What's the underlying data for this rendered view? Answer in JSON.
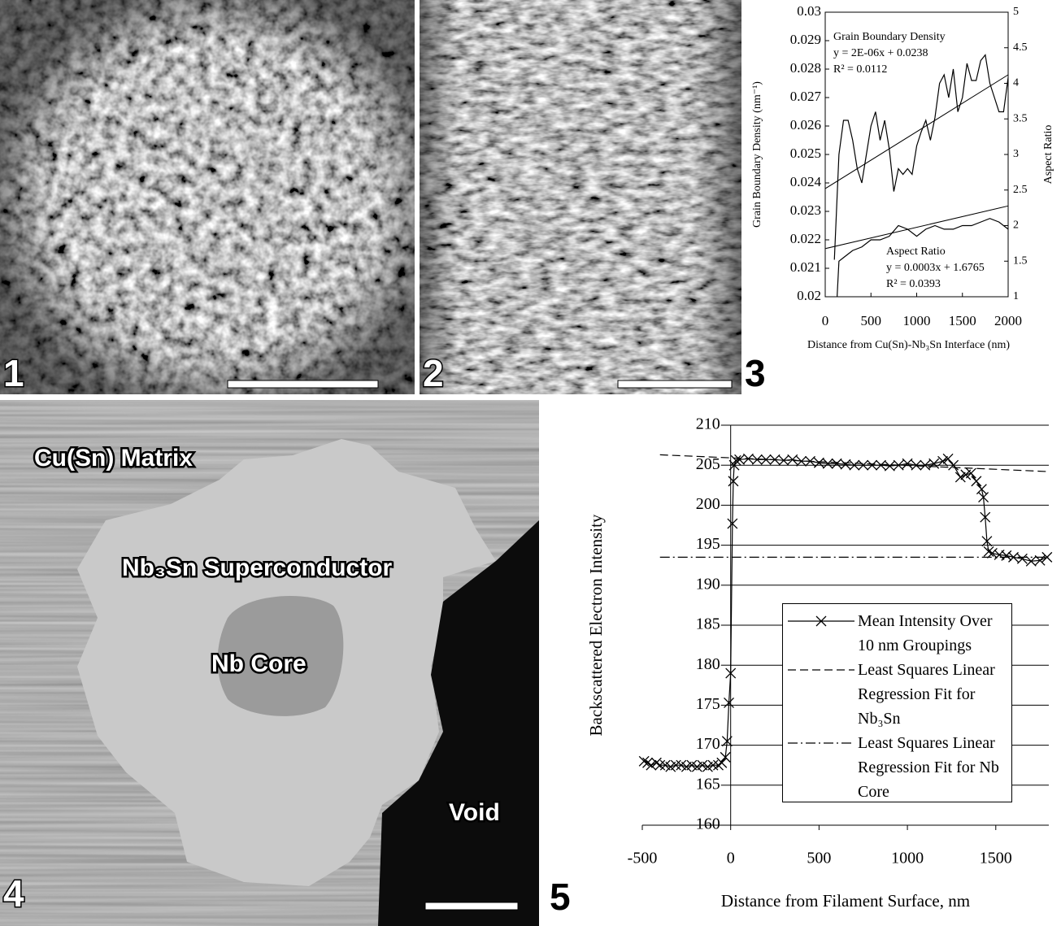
{
  "figure": {
    "panel_labels": [
      "1",
      "2",
      "3",
      "4",
      "5"
    ],
    "micrograph_labels": [
      "Cu(Sn) Matrix",
      "Nb₃Sn Superconductor",
      "Nb Core",
      "Void"
    ]
  },
  "chart_data": [
    {
      "type": "line",
      "x_label": "Distance from Cu(Sn)-Nb₃Sn Interface (nm)",
      "y_label": "Grain Boundary Density (nm⁻¹)",
      "y2_label": "Aspect Ratio",
      "xlim": [
        0,
        2000
      ],
      "xticks": [
        0,
        500,
        1000,
        1500,
        2000
      ],
      "ylim": [
        0.02,
        0.03
      ],
      "yticks": [
        0.02,
        0.021,
        0.022,
        0.023,
        0.024,
        0.025,
        0.026,
        0.027,
        0.028,
        0.029,
        0.03
      ],
      "y2lim": [
        1,
        5
      ],
      "y2ticks": [
        1,
        1.5,
        2,
        2.5,
        3,
        3.5,
        4,
        4.5,
        5
      ],
      "series": [
        {
          "name": "Grain Boundary Density",
          "color": "#000000",
          "x": [
            100,
            150,
            200,
            250,
            300,
            350,
            400,
            450,
            500,
            550,
            600,
            650,
            700,
            750,
            800,
            850,
            900,
            950,
            1000,
            1050,
            1100,
            1150,
            1200,
            1250,
            1300,
            1350,
            1400,
            1450,
            1500,
            1550,
            1600,
            1650,
            1700,
            1750,
            1800,
            1850,
            1900,
            1950,
            2000
          ],
          "values": [
            0.0213,
            0.025,
            0.0262,
            0.0262,
            0.0255,
            0.0245,
            0.024,
            0.025,
            0.026,
            0.0265,
            0.0255,
            0.0262,
            0.0252,
            0.0237,
            0.0245,
            0.0243,
            0.0245,
            0.0243,
            0.0253,
            0.0258,
            0.0262,
            0.0255,
            0.0263,
            0.0275,
            0.0278,
            0.027,
            0.028,
            0.0265,
            0.027,
            0.0282,
            0.0276,
            0.0276,
            0.0283,
            0.0285,
            0.0275,
            0.027,
            0.0265,
            0.0265,
            0.0277
          ],
          "fit": {
            "x": [
              0,
              2000
            ],
            "values": [
              0.0238,
              0.0278
            ],
            "equation": "y = 2E-06x + 0.0238",
            "r_squared": "R² = 0.0112"
          }
        },
        {
          "name": "Aspect Ratio",
          "color": "#000000",
          "axis": "y2",
          "x": [
            130,
            150,
            200,
            250,
            300,
            400,
            500,
            600,
            700,
            800,
            900,
            1000,
            1100,
            1200,
            1300,
            1400,
            1500,
            1600,
            1700,
            1800,
            1900,
            2000
          ],
          "values": [
            1.0,
            1.5,
            1.55,
            1.6,
            1.65,
            1.7,
            1.8,
            1.8,
            1.85,
            2.0,
            1.95,
            1.85,
            1.95,
            2.0,
            1.95,
            1.95,
            2.0,
            2.0,
            2.05,
            2.1,
            2.05,
            1.95
          ],
          "fit": {
            "x": [
              0,
              2000
            ],
            "values": [
              1.6765,
              2.2765
            ],
            "equation": "y = 0.0003x + 1.6765",
            "r_squared": "R² = 0.0393"
          }
        }
      ]
    },
    {
      "type": "line",
      "x_label": "Distance from Filament Surface, nm",
      "y_label": "Backscattered Electron Intensity",
      "xlim": [
        -500,
        1800
      ],
      "xticks": [
        -500,
        0,
        500,
        1000,
        1500
      ],
      "ylim": [
        160,
        210
      ],
      "yticks": [
        160,
        165,
        170,
        175,
        180,
        185,
        190,
        195,
        200,
        205,
        210
      ],
      "grid": true,
      "legend": "lower right",
      "series": [
        {
          "name": "Mean Intensity Over 10 nm Groupings",
          "color": "#000000",
          "marker": "x",
          "x": [
            -490,
            -470,
            -450,
            -420,
            -400,
            -370,
            -340,
            -310,
            -280,
            -250,
            -220,
            -190,
            -160,
            -130,
            -100,
            -70,
            -50,
            -30,
            -20,
            -10,
            0,
            10,
            15,
            20,
            30,
            50,
            100,
            150,
            200,
            250,
            300,
            350,
            400,
            450,
            500,
            550,
            600,
            650,
            700,
            750,
            800,
            850,
            900,
            950,
            1000,
            1050,
            1100,
            1150,
            1200,
            1230,
            1260,
            1300,
            1330,
            1360,
            1390,
            1420,
            1430,
            1440,
            1450,
            1460,
            1480,
            1520,
            1560,
            1600,
            1650,
            1700,
            1750,
            1790
          ],
          "values": [
            168,
            167.8,
            167.5,
            167.8,
            167.5,
            167.5,
            167.3,
            167.5,
            167.5,
            167.3,
            167.5,
            167.3,
            167.5,
            167.3,
            167.5,
            167.5,
            167.8,
            168.5,
            170.5,
            175.3,
            179,
            197.7,
            203,
            205,
            205.6,
            205.7,
            205.8,
            205.7,
            205.7,
            205.7,
            205.6,
            205.7,
            205.5,
            205.5,
            205.3,
            205.2,
            205.2,
            205.1,
            205,
            205,
            205,
            205,
            204.9,
            205,
            205.2,
            205,
            205,
            205.2,
            205.5,
            205.8,
            205,
            203.5,
            203.8,
            204,
            203,
            202,
            201,
            198.5,
            195.5,
            194.2,
            194,
            193.8,
            193.7,
            193.5,
            193.3,
            193,
            193.1,
            193.5
          ]
        },
        {
          "name": "Least Squares Linear Regression Fit for Nb₃Sn",
          "color": "#000000",
          "dash": "dashed",
          "x": [
            -400,
            1800
          ],
          "values": [
            206.3,
            204.2
          ]
        },
        {
          "name": "Least Squares Linear Regression Fit for Nb Core",
          "color": "#000000",
          "dash": "dashdot",
          "x": [
            -400,
            1800
          ],
          "values": [
            193.5,
            193.5
          ]
        }
      ]
    }
  ]
}
